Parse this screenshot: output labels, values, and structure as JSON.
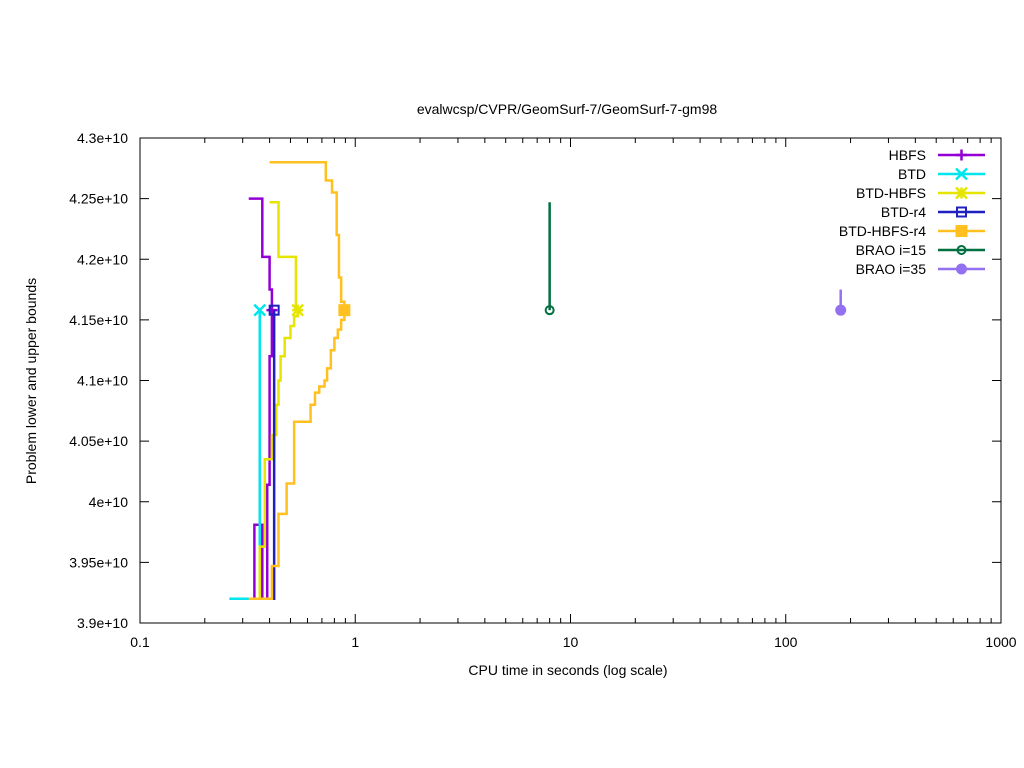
{
  "chart_data": {
    "type": "line",
    "title": "evalwcsp/CVPR/GeomSurf-7/GeomSurf-7-gm98",
    "xlabel": "CPU time in seconds (log scale)",
    "ylabel": "Problem lower and upper bounds",
    "xscale": "log",
    "xlim": [
      0.1,
      1000
    ],
    "ylim": [
      39000000000.0,
      43000000000.0
    ],
    "grid": false,
    "legend_position": "top-right",
    "x_ticks": [
      {
        "value": 0.1,
        "label": "0.1"
      },
      {
        "value": 1,
        "label": "1"
      },
      {
        "value": 10,
        "label": "10"
      },
      {
        "value": 100,
        "label": "100"
      },
      {
        "value": 1000,
        "label": "1000"
      }
    ],
    "y_ticks": [
      {
        "value": 39000000000.0,
        "label": "3.9e+10"
      },
      {
        "value": 39500000000.0,
        "label": "3.95e+10"
      },
      {
        "value": 40000000000.0,
        "label": "4e+10"
      },
      {
        "value": 40500000000.0,
        "label": "4.05e+10"
      },
      {
        "value": 41000000000.0,
        "label": "4.1e+10"
      },
      {
        "value": 41500000000.0,
        "label": "4.15e+10"
      },
      {
        "value": 42000000000.0,
        "label": "4.2e+10"
      },
      {
        "value": 42500000000.0,
        "label": "4.25e+10"
      },
      {
        "value": 43000000000.0,
        "label": "4.3e+10"
      }
    ],
    "series": [
      {
        "name": "HBFS",
        "color": "#9400d3",
        "marker": "plus",
        "marker_point": [
          0.41,
          41580000000.0
        ],
        "paths": [
          [
            [
              0.32,
              42500000000.0
            ],
            [
              0.37,
              42500000000.0
            ],
            [
              0.37,
              42020000000.0
            ],
            [
              0.4,
              42020000000.0
            ],
            [
              0.4,
              41750000000.0
            ],
            [
              0.41,
              41750000000.0
            ],
            [
              0.41,
              41580000000.0
            ]
          ],
          [
            [
              0.34,
              39200000000.0
            ],
            [
              0.34,
              39810000000.0
            ],
            [
              0.37,
              39810000000.0
            ],
            [
              0.37,
              39200000000.0
            ],
            [
              0.39,
              39200000000.0
            ],
            [
              0.39,
              40140000000.0
            ],
            [
              0.4,
              40140000000.0
            ],
            [
              0.4,
              41200000000.0
            ],
            [
              0.41,
              41200000000.0
            ],
            [
              0.41,
              41580000000.0
            ]
          ]
        ]
      },
      {
        "name": "BTD",
        "color": "#00e5ee",
        "marker": "cross",
        "marker_point": [
          0.36,
          41580000000.0
        ],
        "paths": [
          [
            [
              0.26,
              39200000000.0
            ],
            [
              0.36,
              39200000000.0
            ],
            [
              0.36,
              41580000000.0
            ]
          ]
        ]
      },
      {
        "name": "BTD-HBFS",
        "color": "#e5e500",
        "marker": "star",
        "marker_point": [
          0.54,
          41580000000.0
        ],
        "paths": [
          [
            [
              0.4,
              42470000000.0
            ],
            [
              0.44,
              42470000000.0
            ],
            [
              0.44,
              42020000000.0
            ],
            [
              0.53,
              42020000000.0
            ],
            [
              0.53,
              41580000000.0
            ],
            [
              0.54,
              41580000000.0
            ]
          ],
          [
            [
              0.36,
              39200000000.0
            ],
            [
              0.36,
              39630000000.0
            ],
            [
              0.38,
              39630000000.0
            ],
            [
              0.38,
              40350000000.0
            ],
            [
              0.41,
              40350000000.0
            ],
            [
              0.41,
              40550000000.0
            ],
            [
              0.43,
              40550000000.0
            ],
            [
              0.43,
              40800000000.0
            ],
            [
              0.44,
              40800000000.0
            ],
            [
              0.44,
              41000000000.0
            ],
            [
              0.45,
              41000000000.0
            ],
            [
              0.45,
              41200000000.0
            ],
            [
              0.47,
              41200000000.0
            ],
            [
              0.47,
              41350000000.0
            ],
            [
              0.5,
              41350000000.0
            ],
            [
              0.5,
              41450000000.0
            ],
            [
              0.52,
              41450000000.0
            ],
            [
              0.52,
              41530000000.0
            ],
            [
              0.54,
              41530000000.0
            ],
            [
              0.54,
              41580000000.0
            ]
          ]
        ]
      },
      {
        "name": "BTD-r4",
        "color": "#2020c0",
        "marker": "square-open",
        "marker_point": [
          0.42,
          41580000000.0
        ],
        "paths": [
          [
            [
              0.35,
              39200000000.0
            ],
            [
              0.42,
              39200000000.0
            ],
            [
              0.42,
              41580000000.0
            ]
          ]
        ]
      },
      {
        "name": "BTD-HBFS-r4",
        "color": "#ffc020",
        "marker": "square-filled",
        "marker_point": [
          0.89,
          41580000000.0
        ],
        "paths": [
          [
            [
              0.4,
              42800000000.0
            ],
            [
              0.73,
              42800000000.0
            ],
            [
              0.73,
              42650000000.0
            ],
            [
              0.78,
              42650000000.0
            ],
            [
              0.78,
              42550000000.0
            ],
            [
              0.82,
              42550000000.0
            ],
            [
              0.82,
              42200000000.0
            ],
            [
              0.84,
              42200000000.0
            ],
            [
              0.84,
              41850000000.0
            ],
            [
              0.86,
              41850000000.0
            ],
            [
              0.86,
              41650000000.0
            ],
            [
              0.89,
              41650000000.0
            ],
            [
              0.89,
              41580000000.0
            ]
          ],
          [
            [
              0.32,
              39200000000.0
            ],
            [
              0.41,
              39200000000.0
            ],
            [
              0.41,
              39470000000.0
            ],
            [
              0.44,
              39470000000.0
            ],
            [
              0.44,
              39900000000.0
            ],
            [
              0.48,
              39900000000.0
            ],
            [
              0.48,
              40150000000.0
            ],
            [
              0.52,
              40150000000.0
            ],
            [
              0.52,
              40660000000.0
            ],
            [
              0.62,
              40660000000.0
            ],
            [
              0.62,
              40800000000.0
            ],
            [
              0.65,
              40800000000.0
            ],
            [
              0.65,
              40900000000.0
            ],
            [
              0.68,
              40900000000.0
            ],
            [
              0.68,
              40950000000.0
            ],
            [
              0.72,
              40950000000.0
            ],
            [
              0.72,
              41000000000.0
            ],
            [
              0.74,
              41000000000.0
            ],
            [
              0.74,
              41100000000.0
            ],
            [
              0.77,
              41100000000.0
            ],
            [
              0.77,
              41250000000.0
            ],
            [
              0.8,
              41250000000.0
            ],
            [
              0.8,
              41350000000.0
            ],
            [
              0.83,
              41350000000.0
            ],
            [
              0.83,
              41420000000.0
            ],
            [
              0.86,
              41420000000.0
            ],
            [
              0.86,
              41500000000.0
            ],
            [
              0.89,
              41500000000.0
            ],
            [
              0.89,
              41580000000.0
            ]
          ]
        ]
      },
      {
        "name": "BRAO i=15",
        "color": "#007040",
        "marker": "circle-open",
        "marker_point": [
          8.0,
          41580000000.0
        ],
        "paths": [
          [
            [
              8.0,
              42470000000.0
            ],
            [
              8.0,
              41580000000.0
            ]
          ]
        ]
      },
      {
        "name": "BRAO i=35",
        "color": "#9370f0",
        "marker": "circle-filled",
        "marker_point": [
          180,
          41580000000.0
        ],
        "paths": [
          [
            [
              180,
              41750000000.0
            ],
            [
              180,
              41580000000.0
            ]
          ]
        ]
      }
    ]
  }
}
